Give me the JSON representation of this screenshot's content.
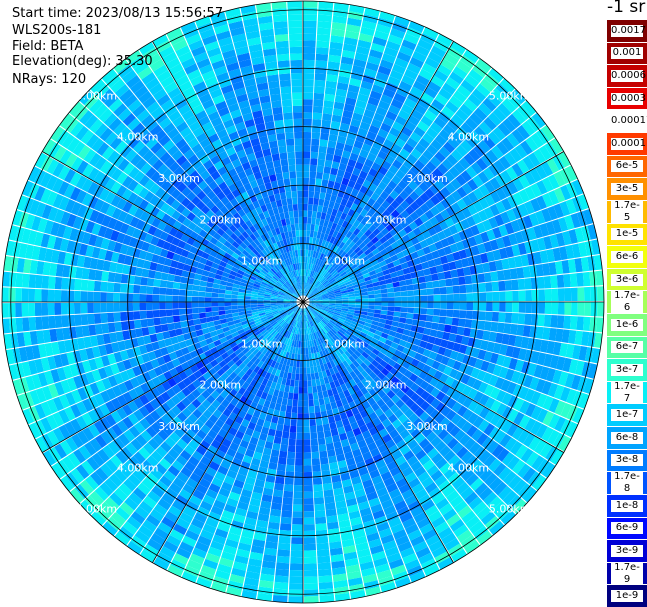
{
  "info": {
    "start_time_label": "Start time:",
    "start_time": "2023/08/13 15:56:57",
    "station": "WLS200s-181",
    "field_label": "Field:",
    "field": "BETA",
    "elevation_label": "Elevation(deg):",
    "elevation": "35.30",
    "nrays_label": "NRays:",
    "nrays": "120"
  },
  "colorbar": {
    "unit": "-1 sr",
    "levels": [
      {
        "label": "0.0017",
        "color": "#7f0000"
      },
      {
        "label": "0.001",
        "color": "#a00000"
      },
      {
        "label": "0.0006",
        "color": "#c40000"
      },
      {
        "label": "0.0003",
        "color": "#e80000"
      },
      {
        "label": "0.00017",
        "color": "#ffffff"
      },
      {
        "label": "0.0001",
        "color": "#ff3a00"
      },
      {
        "label": "6e-5",
        "color": "#ff6600"
      },
      {
        "label": "3e-5",
        "color": "#ff9000"
      },
      {
        "label": "1.7e-5",
        "color": "#ffba00"
      },
      {
        "label": "1e-5",
        "color": "#ffe200"
      },
      {
        "label": "6e-6",
        "color": "#f2ff0c"
      },
      {
        "label": "3e-6",
        "color": "#cfff30"
      },
      {
        "label": "1.7e-6",
        "color": "#a6ff58"
      },
      {
        "label": "1e-6",
        "color": "#80ff7f"
      },
      {
        "label": "6e-7",
        "color": "#56ffa6"
      },
      {
        "label": "3e-7",
        "color": "#2effcf"
      },
      {
        "label": "1.7e-7",
        "color": "#08f0f6"
      },
      {
        "label": "1e-7",
        "color": "#00ccff"
      },
      {
        "label": "6e-8",
        "color": "#00a4ff"
      },
      {
        "label": "3e-8",
        "color": "#007cff"
      },
      {
        "label": "1.7e-8",
        "color": "#0054ff"
      },
      {
        "label": "1e-8",
        "color": "#0030ff"
      },
      {
        "label": "6e-9",
        "color": "#0008ff"
      },
      {
        "label": "3e-9",
        "color": "#0000d6"
      },
      {
        "label": "1.7e-9",
        "color": "#0000aa"
      },
      {
        "label": "1e-9",
        "color": "#00007f"
      }
    ]
  },
  "chart_data": {
    "type": "heatmap",
    "projection": "polar (PPI)",
    "field": "BETA",
    "unit": "-1 sr",
    "nrays": 120,
    "range_rings_km": [
      1,
      2,
      3,
      4,
      5
    ],
    "range_ring_labels": [
      "1.00km",
      "2.00km",
      "3.00km",
      "4.00km",
      "5.00km"
    ],
    "max_range_km": 5.15,
    "radial_grid_deg": [
      0,
      30,
      60,
      90,
      120,
      150,
      180,
      210,
      240,
      270,
      300,
      330
    ],
    "value_scale": "log",
    "value_range": [
      1e-09,
      0.0017
    ],
    "typical_values_by_range_km": [
      {
        "range_km": 0.5,
        "beta": 6e-08
      },
      {
        "range_km": 1.5,
        "beta": 3e-08
      },
      {
        "range_km": 2.5,
        "beta": 3e-08
      },
      {
        "range_km": 3.5,
        "beta": 6e-08
      },
      {
        "range_km": 4.5,
        "beta": 1e-07
      },
      {
        "range_km": 5.0,
        "beta": 1.7e-07
      }
    ]
  }
}
